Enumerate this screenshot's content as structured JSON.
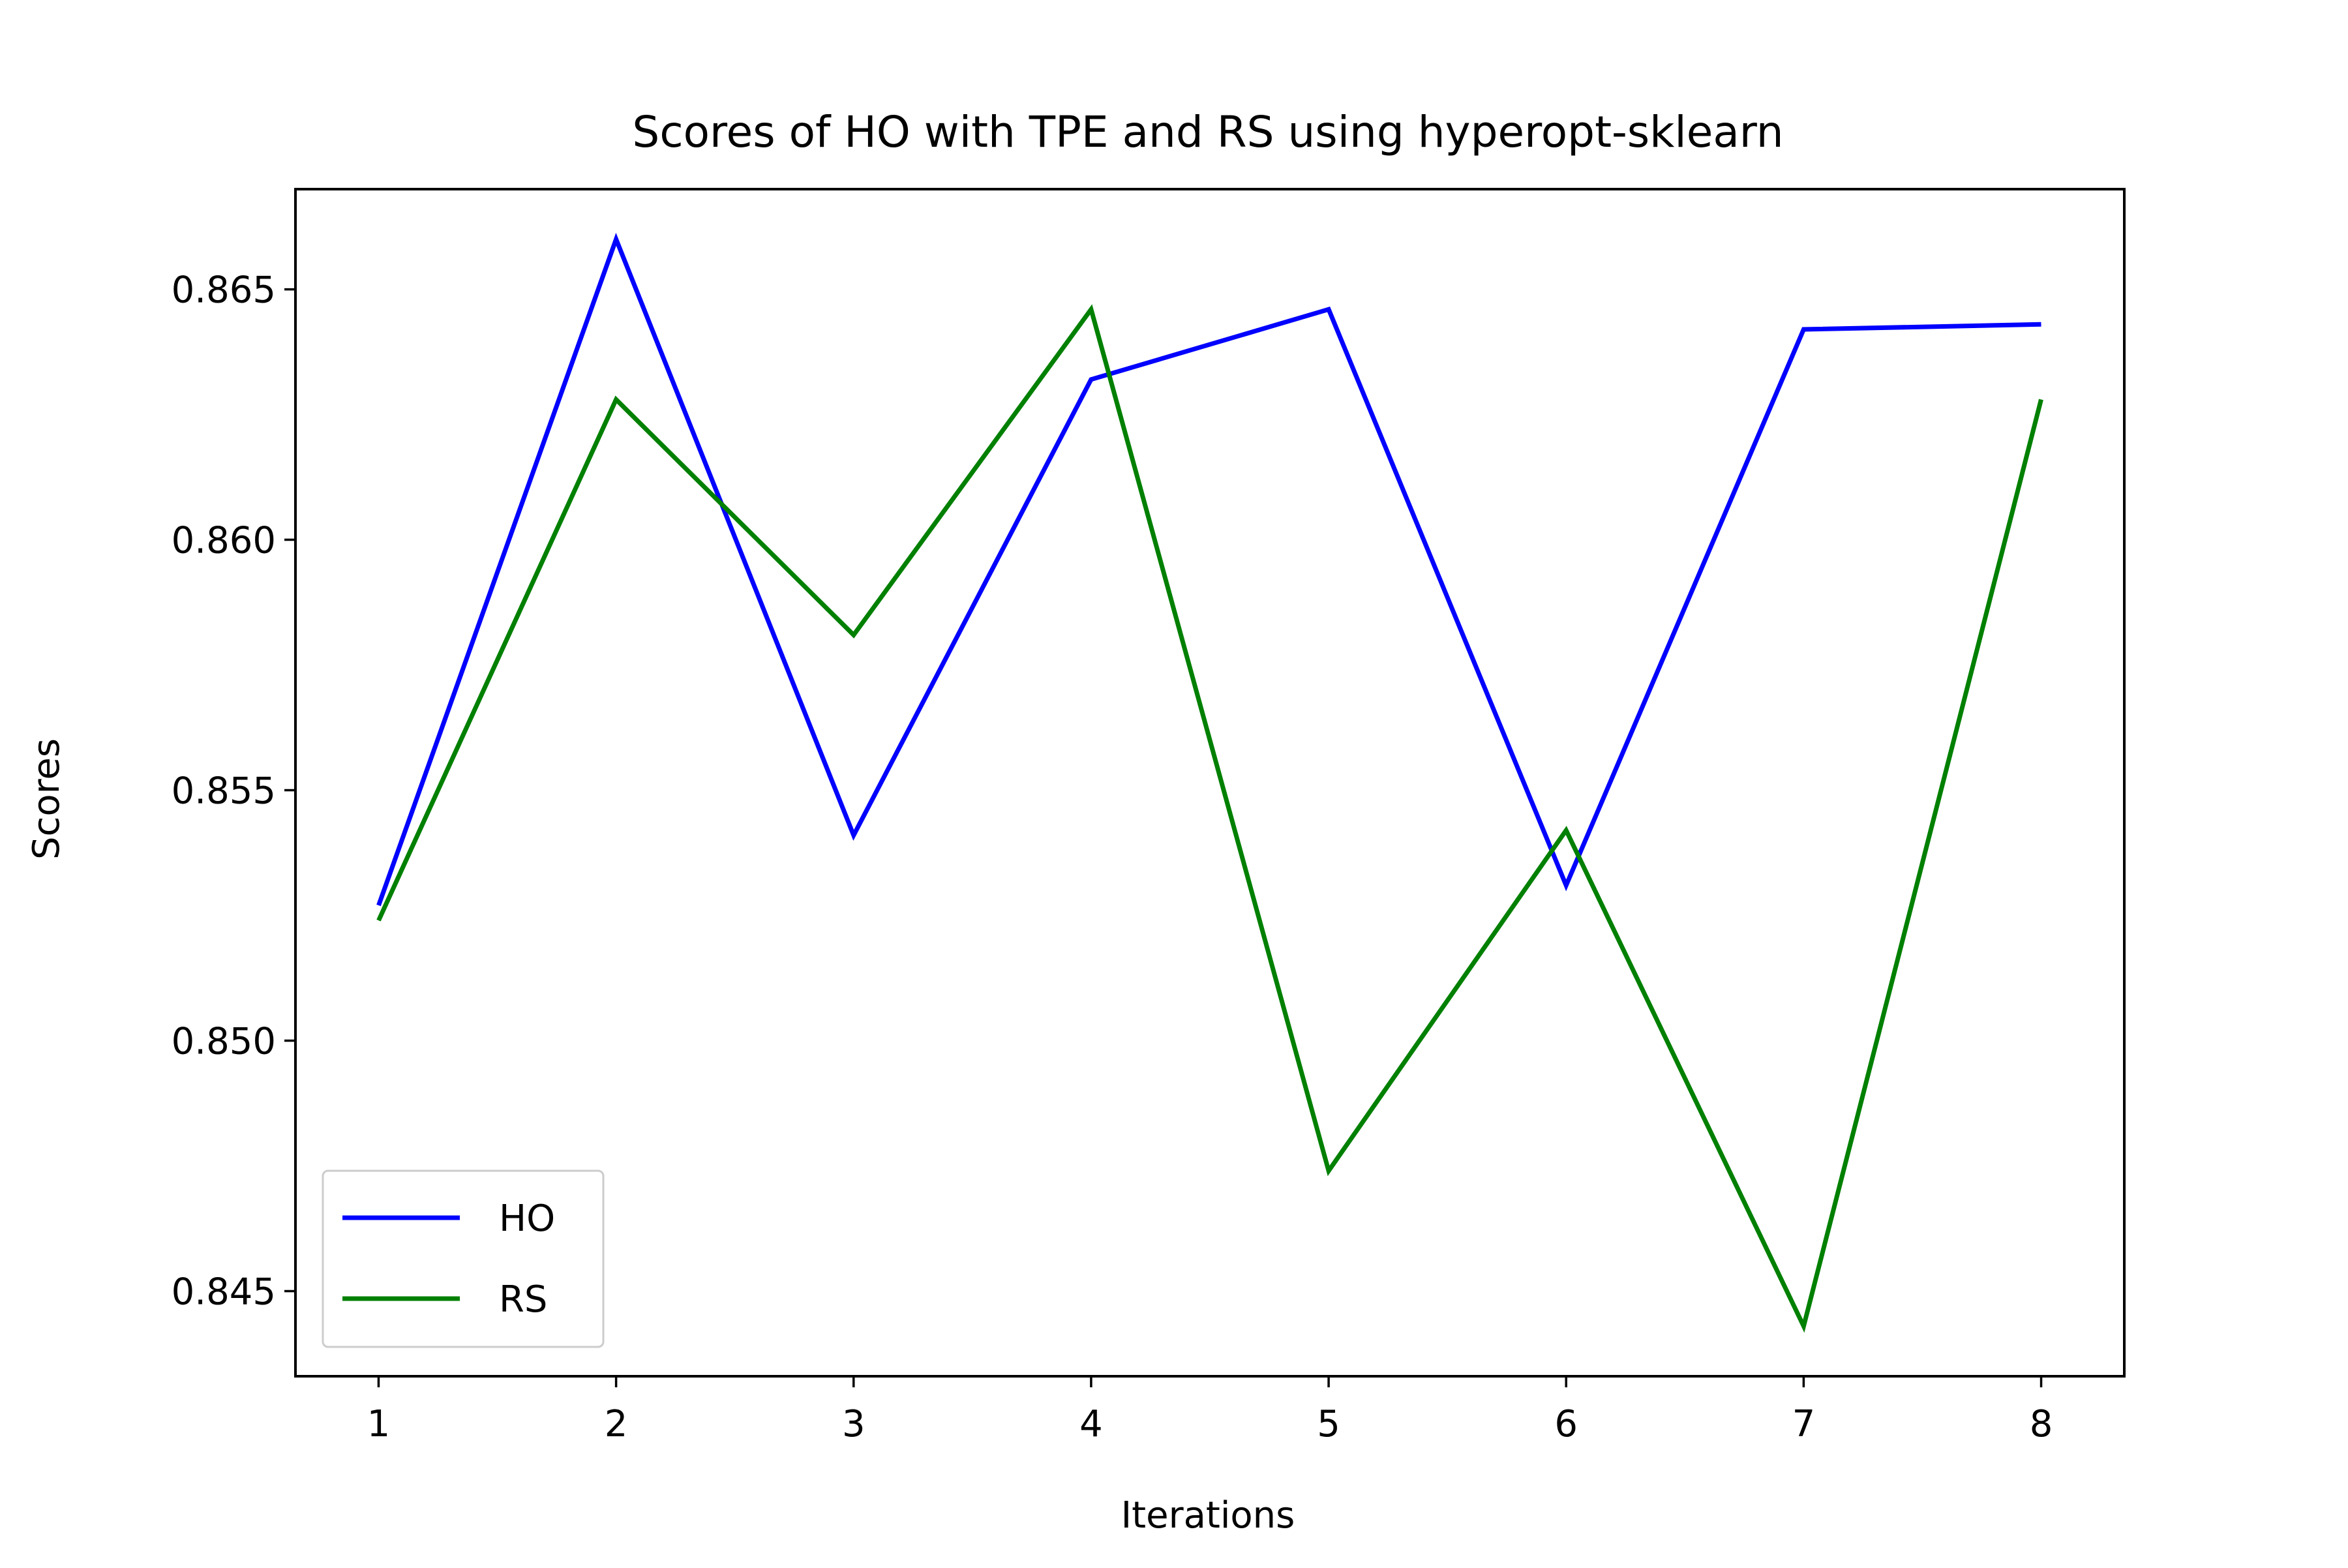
{
  "chart_data": {
    "type": "line",
    "title": "Scores of HO with TPE and RS using hyperopt-sklearn",
    "xlabel": "Iterations",
    "ylabel": "Scores",
    "x": [
      1,
      2,
      3,
      4,
      5,
      6,
      7,
      8
    ],
    "xticks": [
      1,
      2,
      3,
      4,
      5,
      6,
      7,
      8
    ],
    "xlim": [
      0.65,
      8.35
    ],
    "ylim": [
      0.8433,
      0.867
    ],
    "yticks": [
      0.845,
      0.85,
      0.855,
      0.86,
      0.865
    ],
    "ytick_labels": [
      "0.845",
      "0.850",
      "0.855",
      "0.860",
      "0.865"
    ],
    "series": [
      {
        "name": "HO",
        "color": "#0000ff",
        "values": [
          0.8527,
          0.866,
          0.8541,
          0.8632,
          0.8646,
          0.8531,
          0.8642,
          0.8643
        ]
      },
      {
        "name": "RS",
        "color": "#008000",
        "values": [
          0.8524,
          0.8628,
          0.8581,
          0.8646,
          0.8474,
          0.8542,
          0.8443,
          0.8628
        ]
      }
    ],
    "grid": false,
    "legend_position": "lower-left"
  }
}
